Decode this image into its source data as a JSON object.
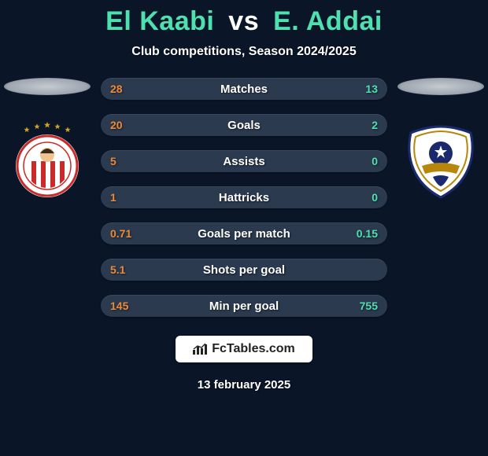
{
  "header": {
    "title_parts": {
      "p1": "El Kaabi",
      "vs": "vs",
      "p2": "E. Addai"
    },
    "title_colors": {
      "p1": "#4fe0b0",
      "vs": "#ffffff",
      "p2": "#4fe0b0"
    },
    "subtitle": "Club competitions, Season 2024/2025",
    "title_fontsize": 34,
    "subtitle_fontsize": 16
  },
  "stats": {
    "row_bg": "#2b3a4f",
    "left_value_color": "#ed8a3a",
    "right_value_color": "#4fe0b0",
    "label_color": "#ffffff",
    "rows": [
      {
        "left": "28",
        "label": "Matches",
        "right": "13"
      },
      {
        "left": "20",
        "label": "Goals",
        "right": "2"
      },
      {
        "left": "5",
        "label": "Assists",
        "right": "0"
      },
      {
        "left": "1",
        "label": "Hattricks",
        "right": "0"
      },
      {
        "left": "0.71",
        "label": "Goals per match",
        "right": "0.15"
      },
      {
        "left": "5.1",
        "label": "Shots per goal",
        "right": ""
      },
      {
        "left": "145",
        "label": "Min per goal",
        "right": "755"
      }
    ]
  },
  "crests": {
    "left": {
      "circle_bg": "#ffffff",
      "ring_stroke": "#c92a2a",
      "inner_fill": "#ffffff",
      "stripes": "#c92a2a",
      "stars_color": "#c9a227"
    },
    "right": {
      "shield_fill": "#ffffff",
      "shield_stroke": "#1a2a6c",
      "ball_fill": "#1a2a6c",
      "ribbon_fill": "#b8860b"
    }
  },
  "branding": {
    "site": "FcTables.com",
    "pill_bg": "#ffffff",
    "text_color": "#222222"
  },
  "footer": {
    "date": "13 february 2025"
  },
  "colors": {
    "background": "#0a1628",
    "shadow_ellipse": "#b5bcc4"
  }
}
